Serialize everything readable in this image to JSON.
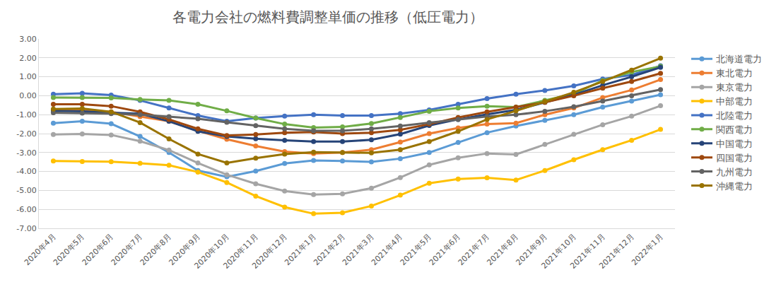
{
  "chart_data": {
    "type": "line",
    "title": "各電力会社の燃料費調整単価の推移（低圧電力）",
    "categories": [
      "2020年4月",
      "2020年5月",
      "2020年6月",
      "2020年7月",
      "2020年8月",
      "2020年9月",
      "2020年10月",
      "2020年11月",
      "2020年12月",
      "2021年1月",
      "2021年2月",
      "2021年3月",
      "2021年4月",
      "2021年5月",
      "2021年6月",
      "2021年7月",
      "2021年8月",
      "2021年9月",
      "2021年10月",
      "2021年11月",
      "2021年12月",
      "2022年1月"
    ],
    "series": [
      {
        "name": "北海道電力",
        "color": "#5B9BD5",
        "values": [
          -1.45,
          -1.35,
          -1.48,
          -2.15,
          -3.0,
          -3.95,
          -4.28,
          -3.98,
          -3.58,
          -3.42,
          -3.45,
          -3.49,
          -3.32,
          -3.0,
          -2.47,
          -1.95,
          -1.6,
          -1.3,
          -1.0,
          -0.6,
          -0.28,
          0.05
        ]
      },
      {
        "name": "東北電力",
        "color": "#ED7D31",
        "values": [
          -0.75,
          -0.75,
          -0.85,
          -1.1,
          -1.35,
          -1.85,
          -2.3,
          -2.65,
          -2.95,
          -3.05,
          -3.0,
          -2.85,
          -2.45,
          -2.0,
          -1.7,
          -1.5,
          -1.45,
          -1.0,
          -0.65,
          -0.1,
          0.3,
          0.85
        ]
      },
      {
        "name": "東京電力",
        "color": "#A5A5A5",
        "values": [
          -2.05,
          -2.02,
          -2.07,
          -2.4,
          -2.87,
          -3.55,
          -4.17,
          -4.65,
          -5.03,
          -5.22,
          -5.18,
          -4.88,
          -4.32,
          -3.65,
          -3.28,
          -3.05,
          -3.1,
          -2.57,
          -2.04,
          -1.53,
          -1.08,
          -0.53
        ]
      },
      {
        "name": "中部電力",
        "color": "#FFC000",
        "values": [
          -3.45,
          -3.47,
          -3.48,
          -3.57,
          -3.67,
          -4.03,
          -4.58,
          -5.3,
          -5.88,
          -6.23,
          -6.18,
          -5.82,
          -5.25,
          -4.62,
          -4.4,
          -4.33,
          -4.45,
          -3.95,
          -3.38,
          -2.85,
          -2.35,
          -1.78
        ]
      },
      {
        "name": "北陸電力",
        "color": "#4472C4",
        "values": [
          0.08,
          0.13,
          0.03,
          -0.25,
          -0.65,
          -1.05,
          -1.35,
          -1.18,
          -1.08,
          -1.0,
          -1.05,
          -1.05,
          -0.95,
          -0.75,
          -0.45,
          -0.15,
          0.08,
          0.28,
          0.52,
          0.88,
          1.1,
          1.58
        ]
      },
      {
        "name": "関西電力",
        "color": "#70AD47",
        "values": [
          -0.1,
          -0.1,
          -0.12,
          -0.2,
          -0.25,
          -0.45,
          -0.8,
          -1.18,
          -1.5,
          -1.68,
          -1.65,
          -1.47,
          -1.15,
          -0.82,
          -0.65,
          -0.55,
          -0.6,
          -0.25,
          0.1,
          0.8,
          1.25,
          1.55
        ]
      },
      {
        "name": "中国電力",
        "color": "#264478",
        "values": [
          -0.8,
          -0.82,
          -0.9,
          -0.95,
          -1.35,
          -1.88,
          -2.15,
          -2.27,
          -2.35,
          -2.42,
          -2.42,
          -2.33,
          -2.03,
          -1.57,
          -1.25,
          -0.98,
          -0.75,
          -0.35,
          0.05,
          0.55,
          1.0,
          1.5
        ]
      },
      {
        "name": "四国電力",
        "color": "#9E480E",
        "values": [
          -0.45,
          -0.45,
          -0.55,
          -0.85,
          -1.25,
          -1.75,
          -2.1,
          -2.05,
          -1.95,
          -1.92,
          -2.0,
          -1.95,
          -1.8,
          -1.5,
          -1.15,
          -0.85,
          -0.6,
          -0.35,
          0.0,
          0.4,
          0.75,
          1.18
        ]
      },
      {
        "name": "九州電力",
        "color": "#636363",
        "values": [
          -0.9,
          -0.92,
          -0.95,
          -1.0,
          -1.1,
          -1.22,
          -1.4,
          -1.58,
          -1.75,
          -1.85,
          -1.85,
          -1.75,
          -1.6,
          -1.42,
          -1.25,
          -1.1,
          -1.0,
          -0.82,
          -0.58,
          -0.28,
          0.0,
          0.32
        ]
      },
      {
        "name": "沖縄電力",
        "color": "#997300",
        "values": [
          -0.7,
          -0.68,
          -0.85,
          -1.42,
          -2.28,
          -3.08,
          -3.55,
          -3.3,
          -3.08,
          -2.98,
          -3.0,
          -3.02,
          -2.85,
          -2.42,
          -1.88,
          -1.25,
          -0.8,
          -0.3,
          0.18,
          0.75,
          1.35,
          1.98
        ]
      }
    ],
    "ylim": [
      -7,
      3
    ],
    "yticks": [
      {
        "value": -7,
        "label": "-7.00"
      },
      {
        "value": -6,
        "label": "-6.00"
      },
      {
        "value": -5,
        "label": "-5.00"
      },
      {
        "value": -4,
        "label": "-4.00"
      },
      {
        "value": -3,
        "label": "-3.00"
      },
      {
        "value": -2,
        "label": "-2.00"
      },
      {
        "value": -1,
        "label": "-1.00"
      },
      {
        "value": 0,
        "label": "0.00"
      },
      {
        "value": 1,
        "label": "1.00"
      },
      {
        "value": 2,
        "label": "2.00"
      },
      {
        "value": 3,
        "label": "3.00"
      }
    ],
    "grid": true,
    "legend": "right",
    "marker": "circle",
    "line_style": "solid"
  }
}
